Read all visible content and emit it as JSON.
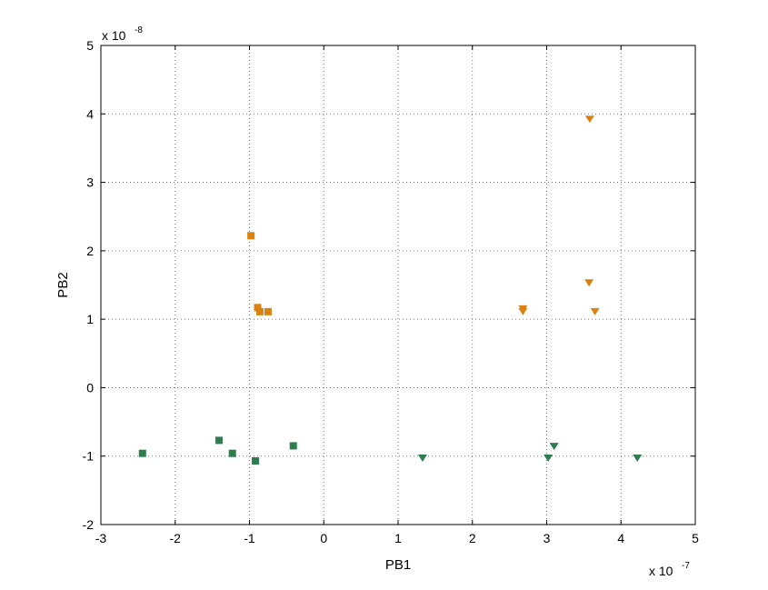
{
  "chart_data": {
    "type": "scatter",
    "title": "",
    "xlabel": "PB1",
    "ylabel": "PB2",
    "x_multiplier": {
      "base": "x 10",
      "exponent": "-7"
    },
    "y_multiplier": {
      "base": "x 10",
      "exponent": "-8"
    },
    "xlim": [
      -3,
      5
    ],
    "ylim": [
      -2,
      5
    ],
    "x_ticks": [
      -3,
      -2,
      -1,
      0,
      1,
      2,
      3,
      4,
      5
    ],
    "y_ticks": [
      -2,
      -1,
      0,
      1,
      2,
      3,
      4,
      5
    ],
    "grid": true,
    "series": [
      {
        "marker": "square",
        "color": "#d9820f",
        "x": [
          -0.98,
          -0.89,
          -0.86,
          -0.75
        ],
        "y": [
          2.22,
          1.17,
          1.11,
          1.11
        ]
      },
      {
        "marker": "triangle-down",
        "color": "#d9820f",
        "x": [
          3.58,
          2.68,
          2.68,
          3.57,
          3.65
        ],
        "y": [
          3.92,
          1.15,
          1.11,
          1.53,
          1.11
        ]
      },
      {
        "marker": "square",
        "color": "#2e7d4f",
        "x": [
          -2.44,
          -1.41,
          -1.23,
          -0.92,
          -0.41
        ],
        "y": [
          -0.96,
          -0.77,
          -0.96,
          -1.07,
          -0.85
        ]
      },
      {
        "marker": "triangle-down",
        "color": "#2e7d4f",
        "x": [
          1.33,
          3.02,
          3.1,
          4.22
        ],
        "y": [
          -1.03,
          -1.03,
          -0.86,
          -1.03
        ]
      }
    ]
  }
}
